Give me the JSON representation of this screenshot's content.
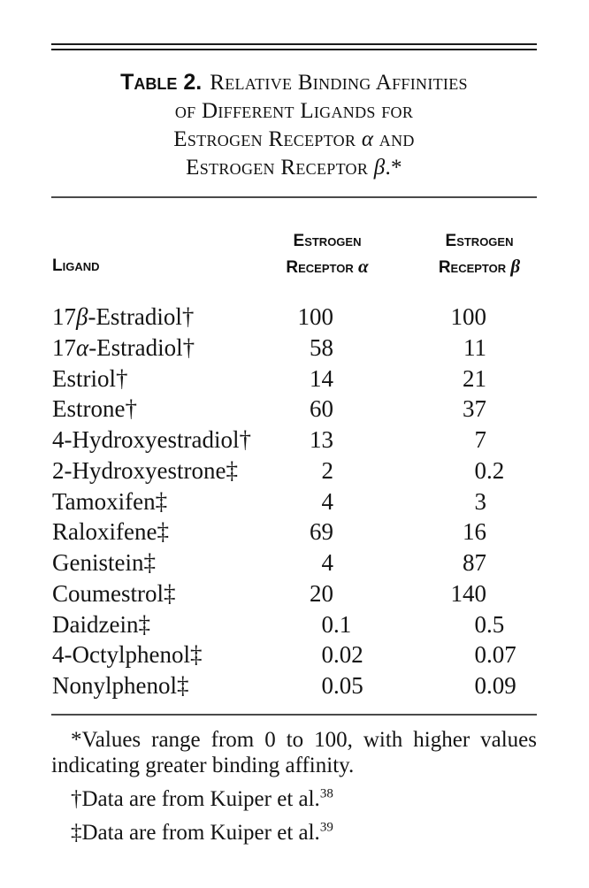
{
  "title": {
    "label": "Table 2.",
    "line1": "Relative Binding Affinities",
    "line2": "of Different Ligands for",
    "line3_pre": "Estrogen Receptor ",
    "line3_greek": "α",
    "line3_post": " and",
    "line4_pre": "Estrogen Receptor ",
    "line4_greek": "β",
    "line4_post": ".*"
  },
  "header": {
    "ligand": "Ligand",
    "alpha": {
      "line1": "Estrogen",
      "line2_pre": "Receptor ",
      "greek": "α"
    },
    "beta": {
      "line1": "Estrogen",
      "line2_pre": "Receptor ",
      "greek": "β"
    }
  },
  "rows": [
    {
      "ligand": "17β-Estradiol†",
      "alpha": "100",
      "beta": "100"
    },
    {
      "ligand": "17α-Estradiol†",
      "alpha": "58",
      "beta": "11"
    },
    {
      "ligand": "Estriol†",
      "alpha": "14",
      "beta": "21"
    },
    {
      "ligand": "Estrone†",
      "alpha": "60",
      "beta": "37"
    },
    {
      "ligand": "4-Hydroxyestradiol†",
      "alpha": "13",
      "beta": "7"
    },
    {
      "ligand": "2-Hydroxyestrone‡",
      "alpha": "2",
      "beta": "0.2"
    },
    {
      "ligand": "Tamoxifen‡",
      "alpha": "4",
      "beta": "3"
    },
    {
      "ligand": "Raloxifene‡",
      "alpha": "69",
      "beta": "16"
    },
    {
      "ligand": "Genistein‡",
      "alpha": "4",
      "beta": "87"
    },
    {
      "ligand": "Coumestrol‡",
      "alpha": "20",
      "beta": "140"
    },
    {
      "ligand": "Daidzein‡",
      "alpha": "0.1",
      "beta": "0.5"
    },
    {
      "ligand": "4-Octylphenol‡",
      "alpha": "0.02",
      "beta": "0.07"
    },
    {
      "ligand": "Nonylphenol‡",
      "alpha": "0.05",
      "beta": "0.09"
    }
  ],
  "footnotes": [
    {
      "text": "*Values range from 0 to 100, with higher values indicating greater binding affinity.",
      "sup": ""
    },
    {
      "text": "†Data are from Kuiper et al.",
      "sup": "38"
    },
    {
      "text": "‡Data are from Kuiper et al.",
      "sup": "39"
    }
  ],
  "colors": {
    "text": "#141414",
    "rule_dark": "#1b1b1b",
    "rule_gray": "#4a4a4a",
    "background": "#ffffff"
  }
}
